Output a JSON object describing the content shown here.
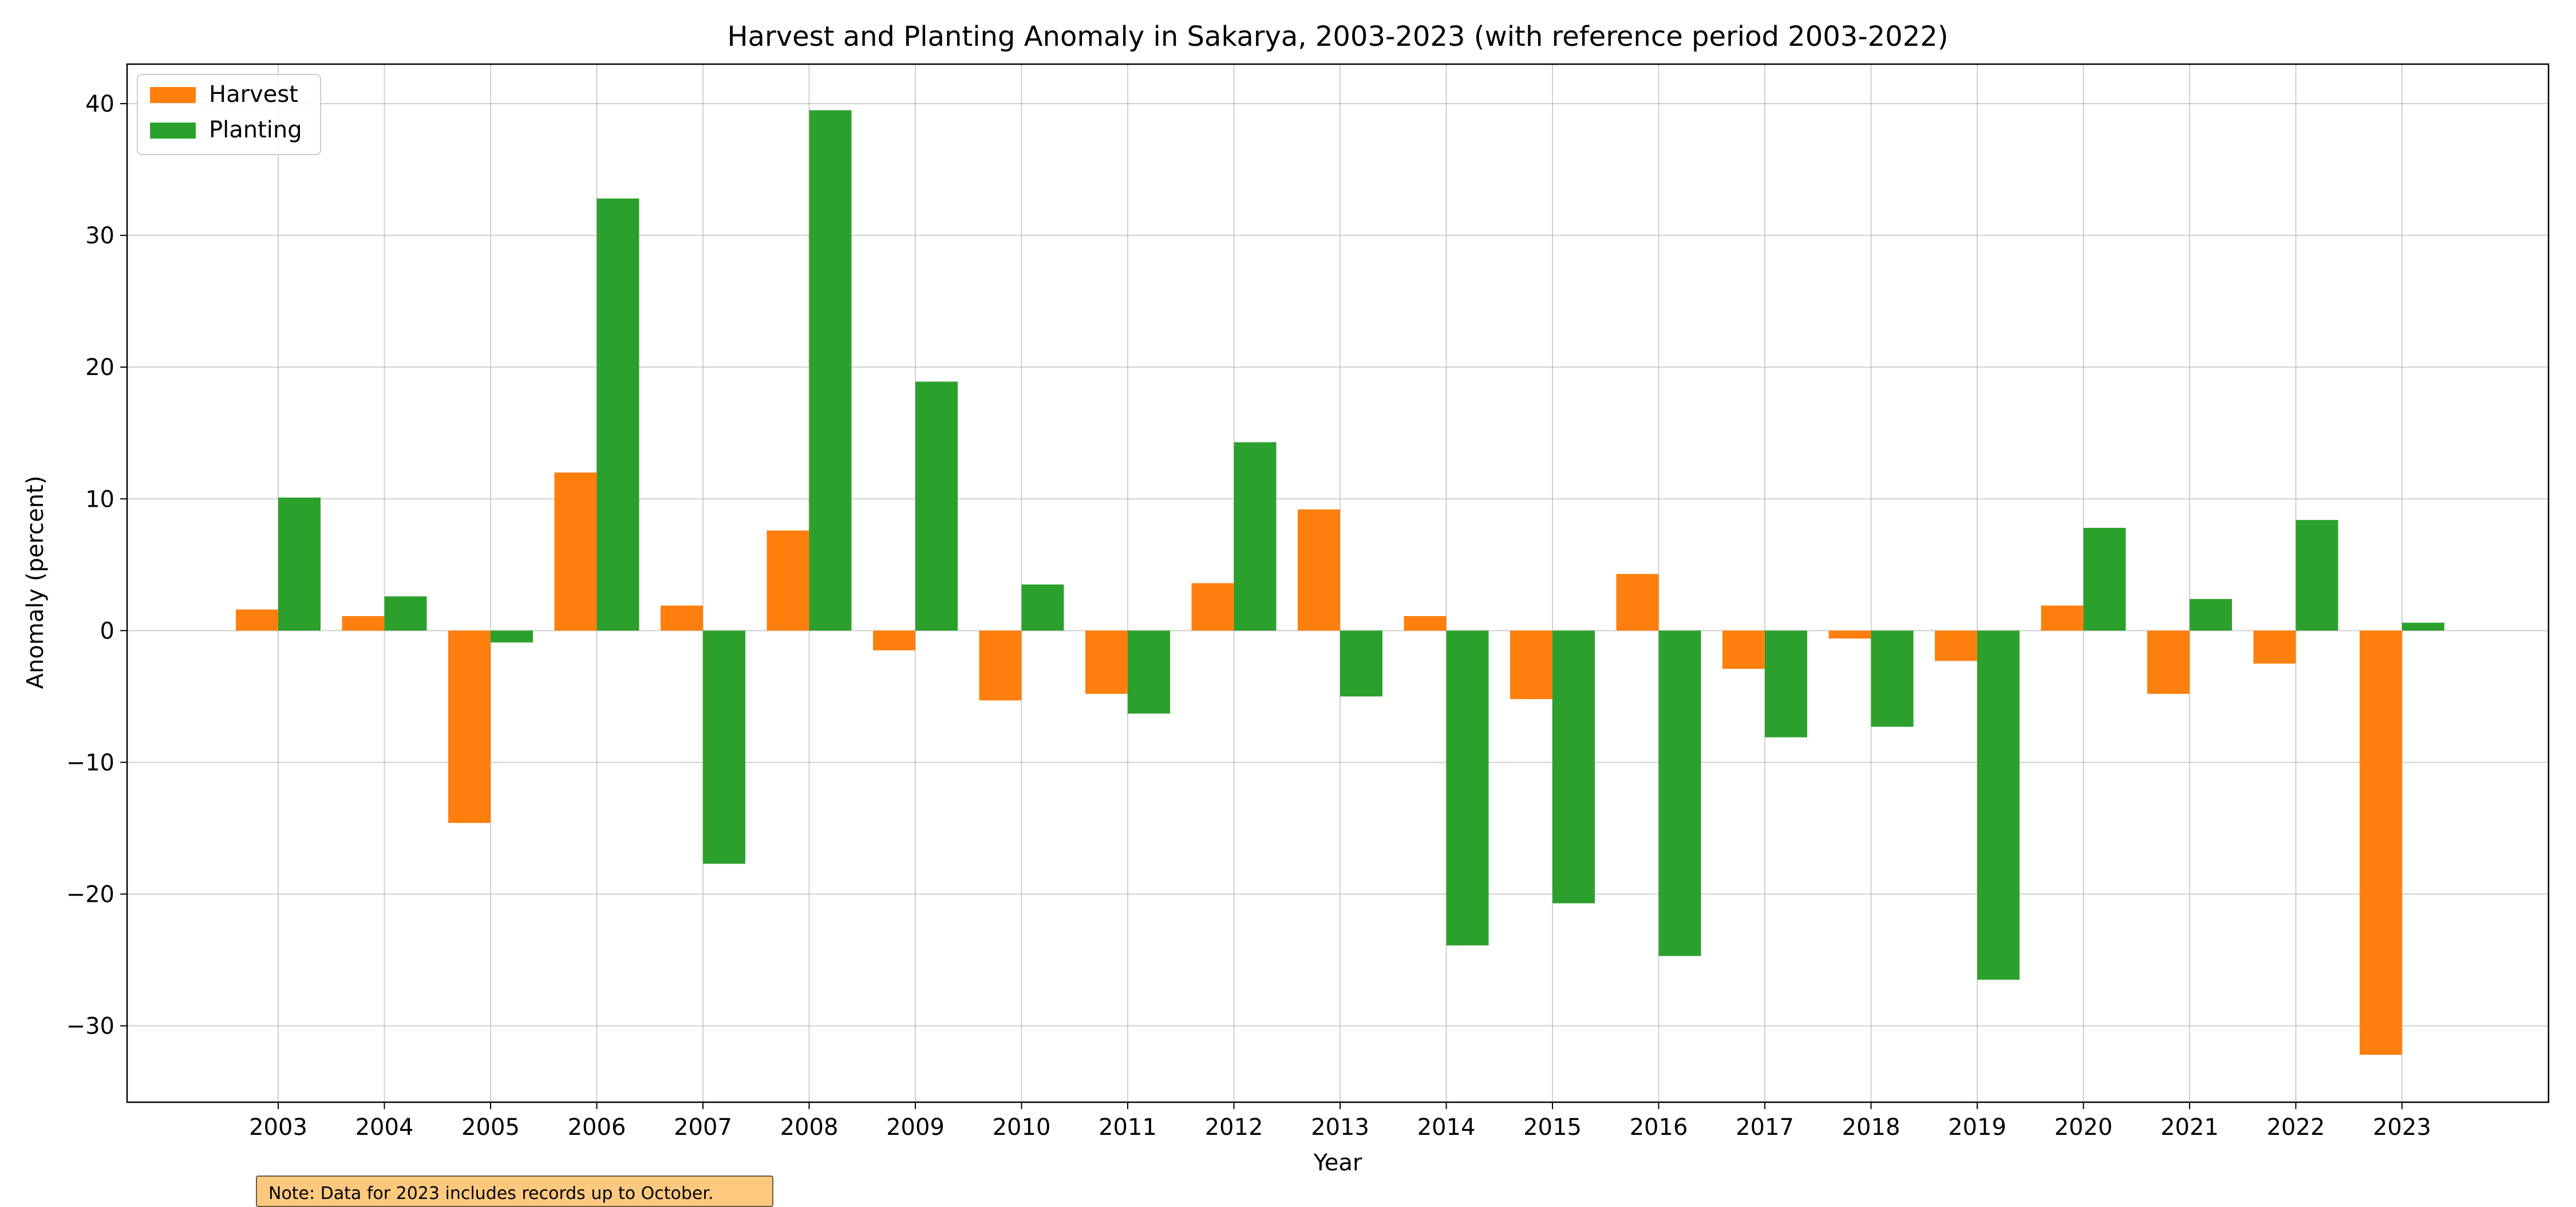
{
  "chart_data": {
    "type": "bar",
    "title": "Harvest and Planting Anomaly in Sakarya, 2003-2023 (with reference period 2003-2022)",
    "xlabel": "Year",
    "ylabel": "Anomaly (percent)",
    "ylim": [
      -35.8,
      43.0
    ],
    "yticks": [
      40,
      30,
      20,
      10,
      0,
      -10,
      -20,
      -30
    ],
    "grid": true,
    "legend_position": "top-left",
    "categories": [
      "2003",
      "2004",
      "2005",
      "2006",
      "2007",
      "2008",
      "2009",
      "2010",
      "2011",
      "2012",
      "2013",
      "2014",
      "2015",
      "2016",
      "2017",
      "2018",
      "2019",
      "2020",
      "2021",
      "2022",
      "2023"
    ],
    "series": [
      {
        "name": "Harvest",
        "color": "#ff7f0e",
        "values": [
          1.6,
          1.1,
          -14.6,
          12.0,
          1.9,
          7.6,
          -1.5,
          -5.3,
          -4.8,
          3.6,
          9.2,
          1.1,
          -5.2,
          4.3,
          -2.9,
          -0.6,
          -2.3,
          1.9,
          -4.8,
          -2.5,
          -32.2
        ]
      },
      {
        "name": "Planting",
        "color": "#2ca02c",
        "values": [
          10.1,
          2.6,
          -0.9,
          32.8,
          -17.7,
          39.5,
          18.9,
          3.5,
          -6.3,
          14.3,
          -5.0,
          -23.9,
          -20.7,
          -24.7,
          -8.1,
          -7.3,
          -26.5,
          7.8,
          2.4,
          8.4,
          0.6
        ]
      }
    ]
  },
  "note": "Note: Data for 2023 includes records up to October."
}
